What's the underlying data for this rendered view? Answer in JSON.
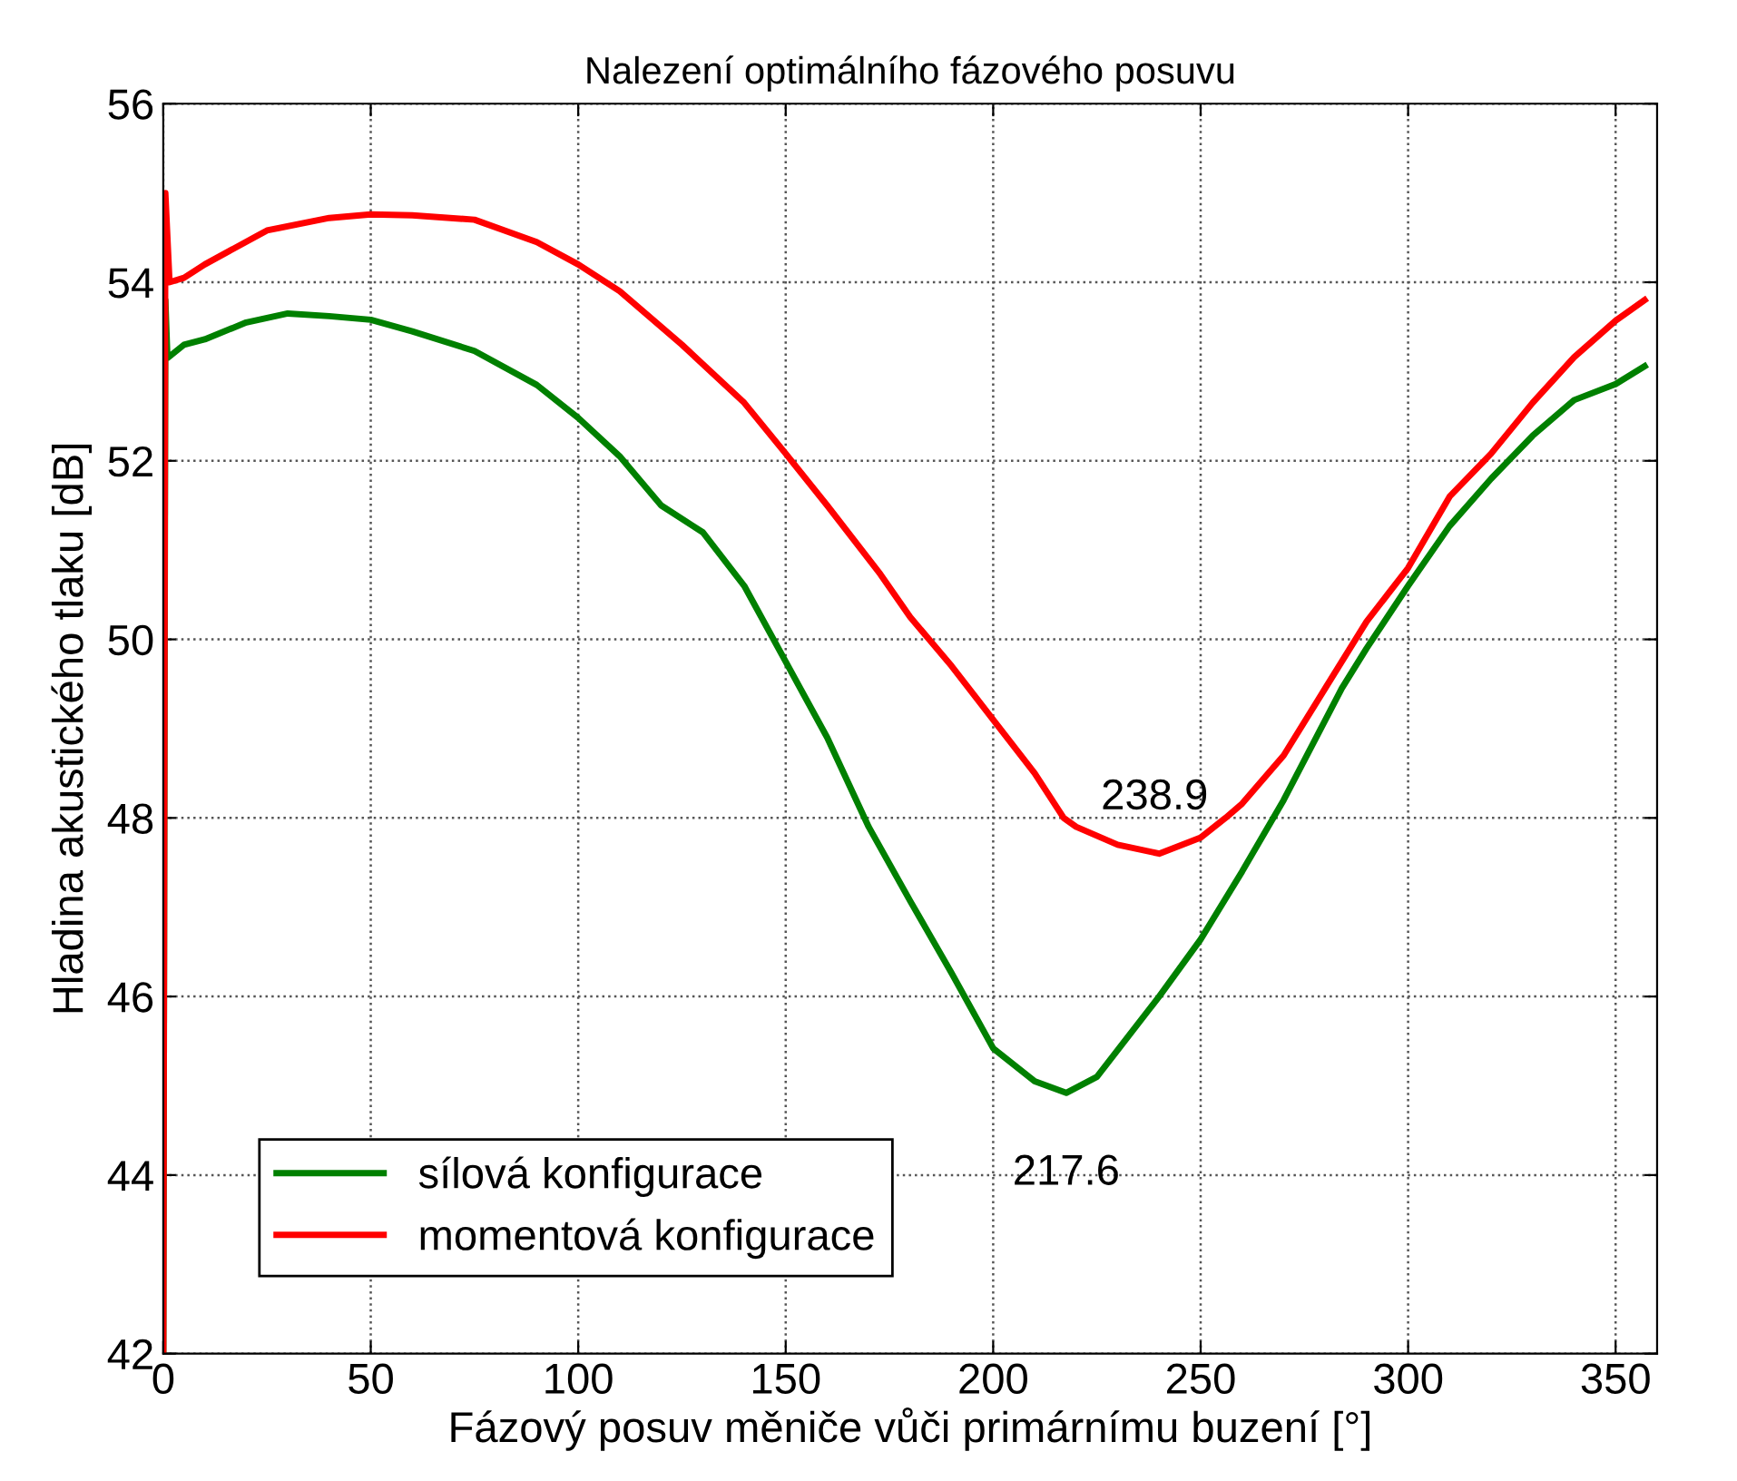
{
  "chart_data": {
    "type": "line",
    "title": "Nalezení optimálního fázového posuvu",
    "xlabel": "Fázový posuv měniče vůči primárnímu buzení [°]",
    "ylabel": "Hladina akustického tlaku [dB]",
    "xlim": [
      0,
      360
    ],
    "ylim": [
      42,
      56
    ],
    "xticks": [
      0,
      50,
      100,
      150,
      200,
      250,
      300,
      350
    ],
    "yticks": [
      42,
      44,
      46,
      48,
      50,
      52,
      54,
      56
    ],
    "grid": true,
    "legend": "bottom left",
    "line_style": "solid",
    "marker": "none",
    "series": [
      {
        "name": "sílová konfigurace",
        "color": "#008000",
        "x": [
          0,
          0.5,
          1,
          5,
          10,
          20,
          30,
          40,
          50,
          60,
          75,
          90,
          100,
          110,
          120,
          130,
          140,
          150,
          160,
          165,
          170,
          180,
          190,
          200,
          210,
          217.6,
          225,
          230,
          240,
          250,
          260,
          270,
          284,
          290,
          300,
          310,
          320,
          330,
          340,
          350,
          357
        ],
        "values": [
          42,
          53.8,
          53.15,
          53.3,
          53.36,
          53.55,
          53.65,
          53.62,
          53.58,
          53.45,
          53.23,
          52.85,
          52.48,
          52.05,
          51.5,
          51.2,
          50.6,
          49.75,
          48.9,
          48.4,
          47.9,
          47.07,
          46.26,
          45.42,
          45.05,
          44.92,
          45.1,
          45.4,
          46.0,
          46.64,
          47.4,
          48.2,
          49.45,
          49.9,
          50.6,
          51.27,
          51.8,
          52.28,
          52.68,
          52.86,
          53.06
        ]
      },
      {
        "name": "momentová konfigurace",
        "color": "#ff0000",
        "x": [
          0,
          0.5,
          1.5,
          5,
          10,
          25,
          40,
          50,
          60,
          75,
          90,
          100,
          110,
          125,
          140,
          150,
          160,
          172.8,
          180,
          190,
          200,
          210,
          217,
          220,
          230,
          240,
          250,
          256,
          260,
          270,
          280,
          290,
          300,
          310,
          320,
          330,
          340,
          350,
          357
        ],
        "values": [
          42,
          55,
          54.0,
          54.05,
          54.2,
          54.58,
          54.72,
          54.76,
          54.75,
          54.7,
          54.45,
          54.2,
          53.9,
          53.3,
          52.65,
          52.08,
          51.5,
          50.73,
          50.25,
          49.7,
          49.1,
          48.5,
          48.0,
          47.9,
          47.7,
          47.6,
          47.78,
          48.0,
          48.16,
          48.7,
          49.45,
          50.2,
          50.8,
          51.6,
          52.08,
          52.65,
          53.16,
          53.57,
          53.8
        ]
      }
    ],
    "annotations": [
      {
        "text": "238.9",
        "x": 238.9,
        "y": 47.6
      },
      {
        "text": "217.6",
        "x": 217.6,
        "y": 44.92
      }
    ]
  }
}
